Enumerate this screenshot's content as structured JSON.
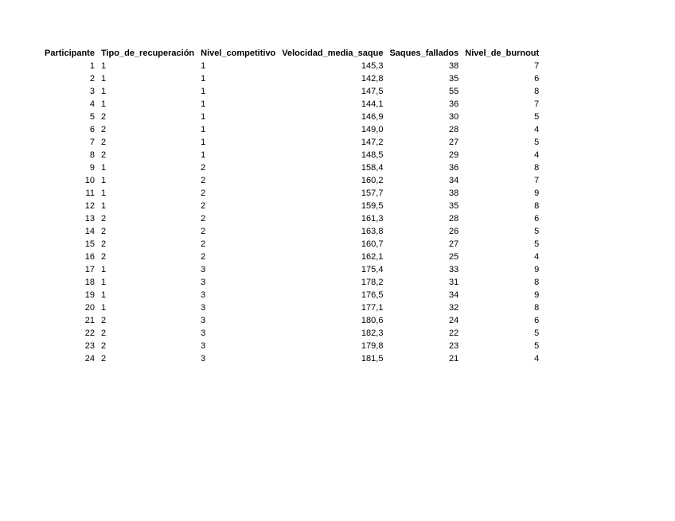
{
  "colors": {
    "background": "#ffffff",
    "text": "#000000"
  },
  "table": {
    "columns": [
      {
        "label": "Participante",
        "align": "right"
      },
      {
        "label": "Tipo_de_recuperación",
        "align": "left"
      },
      {
        "label": "Nivel_competitivo",
        "align": "left"
      },
      {
        "label": "Velocidad_media_saque",
        "align": "right"
      },
      {
        "label": "Saques_fallados",
        "align": "right"
      },
      {
        "label": "Nivel_de_burnout",
        "align": "right"
      }
    ],
    "rows": [
      [
        "1",
        "1",
        "1",
        "145,3",
        "38",
        "7"
      ],
      [
        "2",
        "1",
        "1",
        "142,8",
        "35",
        "6"
      ],
      [
        "3",
        "1",
        "1",
        "147,5",
        "55",
        "8"
      ],
      [
        "4",
        "1",
        "1",
        "144,1",
        "36",
        "7"
      ],
      [
        "5",
        "2",
        "1",
        "146,9",
        "30",
        "5"
      ],
      [
        "6",
        "2",
        "1",
        "149,0",
        "28",
        "4"
      ],
      [
        "7",
        "2",
        "1",
        "147,2",
        "27",
        "5"
      ],
      [
        "8",
        "2",
        "1",
        "148,5",
        "29",
        "4"
      ],
      [
        "9",
        "1",
        "2",
        "158,4",
        "36",
        "8"
      ],
      [
        "10",
        "1",
        "2",
        "160,2",
        "34",
        "7"
      ],
      [
        "11",
        "1",
        "2",
        "157,7",
        "38",
        "9"
      ],
      [
        "12",
        "1",
        "2",
        "159,5",
        "35",
        "8"
      ],
      [
        "13",
        "2",
        "2",
        "161,3",
        "28",
        "6"
      ],
      [
        "14",
        "2",
        "2",
        "163,8",
        "26",
        "5"
      ],
      [
        "15",
        "2",
        "2",
        "160,7",
        "27",
        "5"
      ],
      [
        "16",
        "2",
        "2",
        "162,1",
        "25",
        "4"
      ],
      [
        "17",
        "1",
        "3",
        "175,4",
        "33",
        "9"
      ],
      [
        "18",
        "1",
        "3",
        "178,2",
        "31",
        "8"
      ],
      [
        "19",
        "1",
        "3",
        "176,5",
        "34",
        "9"
      ],
      [
        "20",
        "1",
        "3",
        "177,1",
        "32",
        "8"
      ],
      [
        "21",
        "2",
        "3",
        "180,6",
        "24",
        "6"
      ],
      [
        "22",
        "2",
        "3",
        "182,3",
        "22",
        "5"
      ],
      [
        "23",
        "2",
        "3",
        "179,8",
        "23",
        "5"
      ],
      [
        "24",
        "2",
        "3",
        "181,5",
        "21",
        "4"
      ]
    ]
  }
}
